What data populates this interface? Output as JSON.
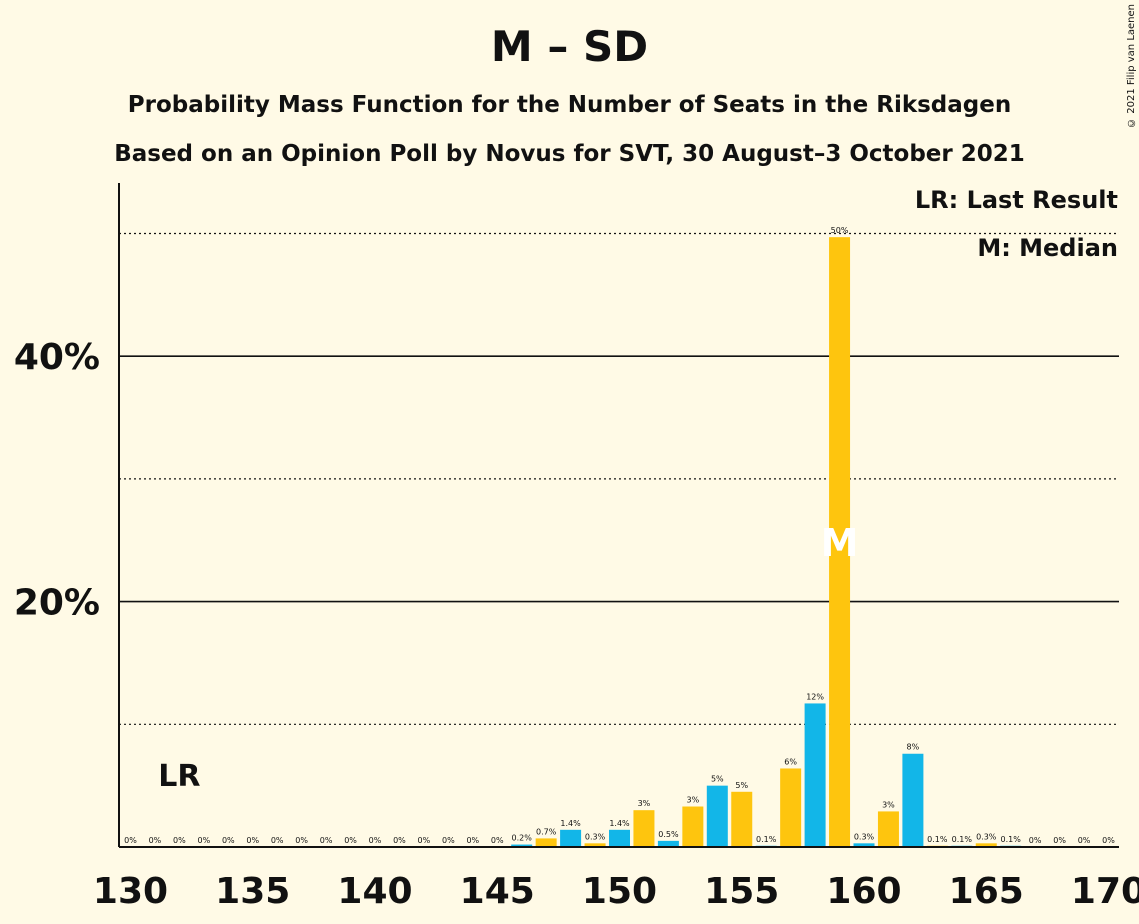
{
  "title": "M – SD",
  "subtitle_1": "Probability Mass Function for the Number of Seats in the Riksdagen",
  "subtitle_2": "Based on an Opinion Poll by Novus for SVT, 30 August–3 October 2021",
  "copyright": "© 2021 Filip van Laenen",
  "legend": {
    "last_result": "LR: Last Result",
    "median": "M: Median"
  },
  "colors": {
    "background": "#fffae6",
    "blue": "#12b6e8",
    "yellow": "#fec50e",
    "axis": "#111111"
  },
  "chart_data": {
    "type": "bar",
    "xlabel": "",
    "ylabel": "",
    "xlim": [
      130,
      170
    ],
    "ylim": [
      0,
      54
    ],
    "x_ticks": [
      130,
      135,
      140,
      145,
      150,
      155,
      160,
      165,
      170
    ],
    "y_ticks_labeled": [
      {
        "value": 20,
        "label": "20%"
      },
      {
        "value": 40,
        "label": "40%"
      }
    ],
    "y_gridlines_solid": [
      20,
      40
    ],
    "y_gridlines_dotted": [
      10,
      30,
      50
    ],
    "last_result_seat": 132,
    "last_result_label": "LR",
    "median_seat": 159,
    "median_label": "M",
    "bars": [
      {
        "seat": 130,
        "value": 0,
        "label": "0%",
        "color": "blue"
      },
      {
        "seat": 131,
        "value": 0,
        "label": "0%",
        "color": "yellow"
      },
      {
        "seat": 132,
        "value": 0,
        "label": "0%",
        "color": "blue"
      },
      {
        "seat": 133,
        "value": 0,
        "label": "0%",
        "color": "yellow"
      },
      {
        "seat": 134,
        "value": 0,
        "label": "0%",
        "color": "blue"
      },
      {
        "seat": 135,
        "value": 0,
        "label": "0%",
        "color": "yellow"
      },
      {
        "seat": 136,
        "value": 0,
        "label": "0%",
        "color": "blue"
      },
      {
        "seat": 137,
        "value": 0,
        "label": "0%",
        "color": "yellow"
      },
      {
        "seat": 138,
        "value": 0,
        "label": "0%",
        "color": "blue"
      },
      {
        "seat": 139,
        "value": 0,
        "label": "0%",
        "color": "yellow"
      },
      {
        "seat": 140,
        "value": 0,
        "label": "0%",
        "color": "blue"
      },
      {
        "seat": 141,
        "value": 0,
        "label": "0%",
        "color": "yellow"
      },
      {
        "seat": 142,
        "value": 0,
        "label": "0%",
        "color": "blue"
      },
      {
        "seat": 143,
        "value": 0,
        "label": "0%",
        "color": "yellow"
      },
      {
        "seat": 144,
        "value": 0,
        "label": "0%",
        "color": "blue"
      },
      {
        "seat": 145,
        "value": 0,
        "label": "0%",
        "color": "yellow"
      },
      {
        "seat": 146,
        "value": 0.2,
        "label": "0.2%",
        "color": "blue"
      },
      {
        "seat": 147,
        "value": 0.7,
        "label": "0.7%",
        "color": "yellow"
      },
      {
        "seat": 148,
        "value": 1.4,
        "label": "1.4%",
        "color": "blue"
      },
      {
        "seat": 149,
        "value": 0.3,
        "label": "0.3%",
        "color": "yellow"
      },
      {
        "seat": 150,
        "value": 1.4,
        "label": "1.4%",
        "color": "blue"
      },
      {
        "seat": 151,
        "value": 3.0,
        "label": "3%",
        "color": "yellow"
      },
      {
        "seat": 152,
        "value": 0.5,
        "label": "0.5%",
        "color": "blue"
      },
      {
        "seat": 153,
        "value": 3.3,
        "label": "3%",
        "color": "yellow"
      },
      {
        "seat": 154,
        "value": 5.0,
        "label": "5%",
        "color": "blue"
      },
      {
        "seat": 155,
        "value": 4.5,
        "label": "5%",
        "color": "yellow"
      },
      {
        "seat": 156,
        "value": 0.1,
        "label": "0.1%",
        "color": "blue"
      },
      {
        "seat": 157,
        "value": 6.4,
        "label": "6%",
        "color": "yellow"
      },
      {
        "seat": 158,
        "value": 11.7,
        "label": "12%",
        "color": "blue"
      },
      {
        "seat": 159,
        "value": 49.7,
        "label": "50%",
        "color": "yellow"
      },
      {
        "seat": 160,
        "value": 0.3,
        "label": "0.3%",
        "color": "blue"
      },
      {
        "seat": 161,
        "value": 2.9,
        "label": "3%",
        "color": "yellow"
      },
      {
        "seat": 162,
        "value": 7.6,
        "label": "8%",
        "color": "blue"
      },
      {
        "seat": 163,
        "value": 0.1,
        "label": "0.1%",
        "color": "yellow"
      },
      {
        "seat": 164,
        "value": 0.1,
        "label": "0.1%",
        "color": "blue"
      },
      {
        "seat": 165,
        "value": 0.3,
        "label": "0.3%",
        "color": "yellow"
      },
      {
        "seat": 166,
        "value": 0.1,
        "label": "0.1%",
        "color": "blue"
      },
      {
        "seat": 167,
        "value": 0,
        "label": "0%",
        "color": "yellow"
      },
      {
        "seat": 168,
        "value": 0,
        "label": "0%",
        "color": "blue"
      },
      {
        "seat": 169,
        "value": 0,
        "label": "0%",
        "color": "yellow"
      },
      {
        "seat": 170,
        "value": 0,
        "label": "0%",
        "color": "blue"
      }
    ]
  }
}
